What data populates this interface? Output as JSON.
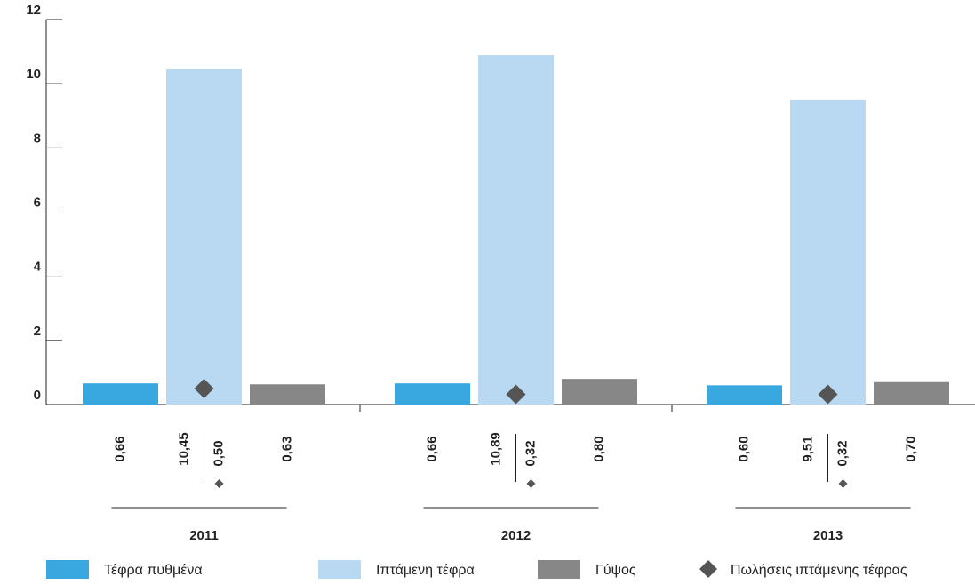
{
  "chart_data": {
    "type": "bar",
    "categories": [
      "2011",
      "2012",
      "2013"
    ],
    "series": [
      {
        "name": "Τέφρα πυθμένα",
        "color": "#3aa8e0",
        "values": [
          0.66,
          0.66,
          0.6
        ],
        "value_labels": [
          "0,66",
          "0,66",
          "0,60"
        ]
      },
      {
        "name": "Ιπτάμενη τέφρα",
        "color": "#b9d9f2",
        "values": [
          10.45,
          10.89,
          9.51
        ],
        "value_labels": [
          "10,45",
          "10,89",
          "9,51"
        ]
      },
      {
        "name": "Γύψος",
        "color": "#878787",
        "values": [
          0.63,
          0.8,
          0.7
        ],
        "value_labels": [
          "0,63",
          "0,80",
          "0,70"
        ]
      },
      {
        "name": "Πωλήσεις ιπτάμενης τέφρας",
        "color": "#555555",
        "marker": "diamond",
        "values": [
          0.5,
          0.32,
          0.32
        ],
        "value_labels": [
          "0,50",
          "0,32",
          "0,32"
        ]
      }
    ],
    "ylim": [
      0,
      12
    ],
    "yticks": [
      0,
      2,
      4,
      6,
      8,
      10,
      12
    ],
    "legend": "bottom"
  }
}
